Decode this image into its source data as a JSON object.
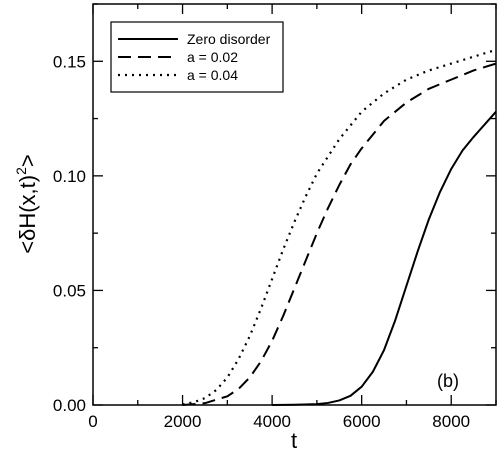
{
  "chart_data": {
    "type": "line",
    "xlabel": "t",
    "ylabel_parts": [
      "<δH(x,t)",
      "2",
      ">"
    ],
    "xlim": [
      0,
      9000
    ],
    "ylim": [
      0,
      0.175
    ],
    "x_ticks": [
      0,
      2000,
      4000,
      6000,
      8000
    ],
    "x_tick_labels": [
      "0",
      "2000",
      "4000",
      "6000",
      "8000"
    ],
    "y_ticks": [
      0,
      0.05,
      0.1,
      0.15
    ],
    "y_tick_labels": [
      "0.00",
      "0.05",
      "0.10",
      "0.15"
    ],
    "annotation": "(b)",
    "legend_position": "top-left",
    "grid": false,
    "series": [
      {
        "name": "Zero disorder",
        "dash": "solid",
        "x": [
          4000,
          4500,
          5000,
          5250,
          5500,
          5750,
          6000,
          6250,
          6500,
          6750,
          7000,
          7250,
          7500,
          7750,
          8000,
          8250,
          8500,
          8750,
          9000
        ],
        "y": [
          0.0,
          0.0001,
          0.0004,
          0.0009,
          0.002,
          0.004,
          0.008,
          0.0145,
          0.024,
          0.037,
          0.052,
          0.067,
          0.081,
          0.093,
          0.103,
          0.111,
          0.117,
          0.1225,
          0.128
        ]
      },
      {
        "name": "a = 0.02",
        "dash": "dashed",
        "x": [
          2000,
          2500,
          3000,
          3250,
          3500,
          3750,
          4000,
          4250,
          4500,
          4750,
          5000,
          5250,
          5500,
          5750,
          6000,
          6500,
          7000,
          7500,
          8000,
          8500,
          9000
        ],
        "y": [
          0.0,
          0.0008,
          0.0038,
          0.007,
          0.012,
          0.019,
          0.028,
          0.039,
          0.051,
          0.063,
          0.075,
          0.086,
          0.096,
          0.105,
          0.112,
          0.124,
          0.132,
          0.138,
          0.142,
          0.146,
          0.149
        ]
      },
      {
        "name": "a = 0.04",
        "dash": "dotted",
        "x": [
          2000,
          2250,
          2500,
          2750,
          3000,
          3250,
          3500,
          3750,
          4000,
          4250,
          4500,
          4750,
          5000,
          5500,
          6000,
          6500,
          7000,
          7500,
          8000,
          8500,
          9000
        ],
        "y": [
          0.0002,
          0.0012,
          0.003,
          0.0065,
          0.012,
          0.02,
          0.03,
          0.042,
          0.055,
          0.068,
          0.08,
          0.091,
          0.101,
          0.116,
          0.128,
          0.136,
          0.142,
          0.146,
          0.149,
          0.152,
          0.155
        ]
      }
    ]
  }
}
